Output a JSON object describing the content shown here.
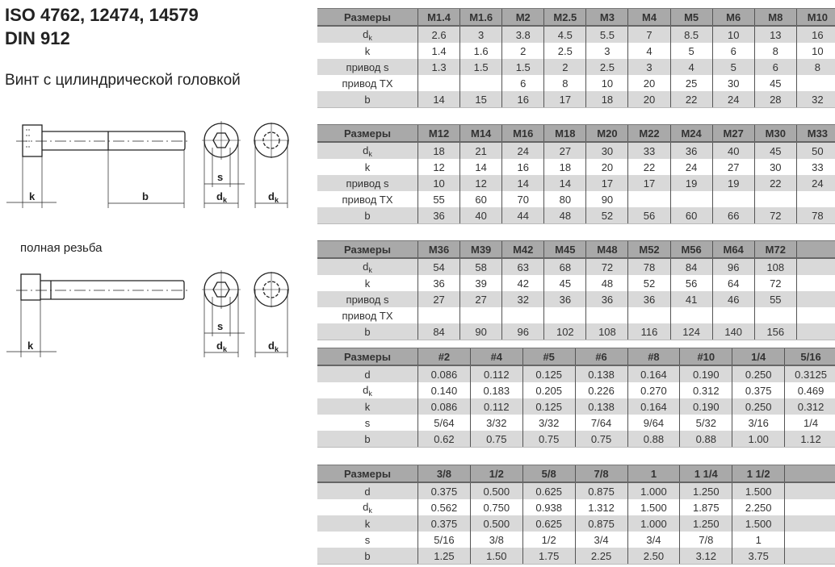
{
  "title_lines": [
    "ISO 4762, 12474, 14579",
    "DIN 912"
  ],
  "subtitle": "Винт с цилиндрической головкой",
  "full_thread_label": "полная резьба",
  "drawing_labels": {
    "k": "k",
    "b": "b",
    "s": "s",
    "dk_base": "d",
    "dk_sub": "k"
  },
  "tables": [
    {
      "header": "Размеры",
      "columns": [
        "M1.4",
        "M1.6",
        "M2",
        "M2.5",
        "M3",
        "M4",
        "M5",
        "M6",
        "M8",
        "M10"
      ],
      "rows": [
        {
          "label": "d",
          "sub": "k",
          "values": [
            "2.6",
            "3",
            "3.8",
            "4.5",
            "5.5",
            "7",
            "8.5",
            "10",
            "13",
            "16"
          ]
        },
        {
          "label": "k",
          "values": [
            "1.4",
            "1.6",
            "2",
            "2.5",
            "3",
            "4",
            "5",
            "6",
            "8",
            "10"
          ]
        },
        {
          "label": "привод s",
          "values": [
            "1.3",
            "1.5",
            "1.5",
            "2",
            "2.5",
            "3",
            "4",
            "5",
            "6",
            "8"
          ]
        },
        {
          "label": "привод TX",
          "values": [
            "",
            "",
            "6",
            "8",
            "10",
            "20",
            "25",
            "30",
            "45",
            ""
          ]
        },
        {
          "label": "b",
          "values": [
            "14",
            "15",
            "16",
            "17",
            "18",
            "20",
            "22",
            "24",
            "28",
            "32"
          ]
        }
      ]
    },
    {
      "header": "Размеры",
      "columns": [
        "M12",
        "M14",
        "M16",
        "M18",
        "M20",
        "M22",
        "M24",
        "M27",
        "M30",
        "M33"
      ],
      "rows": [
        {
          "label": "d",
          "sub": "k",
          "values": [
            "18",
            "21",
            "24",
            "27",
            "30",
            "33",
            "36",
            "40",
            "45",
            "50"
          ]
        },
        {
          "label": "k",
          "values": [
            "12",
            "14",
            "16",
            "18",
            "20",
            "22",
            "24",
            "27",
            "30",
            "33"
          ]
        },
        {
          "label": "привод s",
          "values": [
            "10",
            "12",
            "14",
            "14",
            "17",
            "17",
            "19",
            "19",
            "22",
            "24"
          ]
        },
        {
          "label": "привод TX",
          "values": [
            "55",
            "60",
            "70",
            "80",
            "90",
            "",
            "",
            "",
            "",
            ""
          ]
        },
        {
          "label": "b",
          "values": [
            "36",
            "40",
            "44",
            "48",
            "52",
            "56",
            "60",
            "66",
            "72",
            "78"
          ]
        }
      ]
    },
    {
      "header": "Размеры",
      "columns": [
        "M36",
        "M39",
        "M42",
        "M45",
        "M48",
        "M52",
        "M56",
        "M64",
        "M72",
        ""
      ],
      "rows": [
        {
          "label": "d",
          "sub": "k",
          "values": [
            "54",
            "58",
            "63",
            "68",
            "72",
            "78",
            "84",
            "96",
            "108",
            ""
          ]
        },
        {
          "label": "k",
          "values": [
            "36",
            "39",
            "42",
            "45",
            "48",
            "52",
            "56",
            "64",
            "72",
            ""
          ]
        },
        {
          "label": "привод s",
          "values": [
            "27",
            "27",
            "32",
            "36",
            "36",
            "36",
            "41",
            "46",
            "55",
            ""
          ]
        },
        {
          "label": "привод TX",
          "values": [
            "",
            "",
            "",
            "",
            "",
            "",
            "",
            "",
            "",
            ""
          ]
        },
        {
          "label": "b",
          "values": [
            "84",
            "90",
            "96",
            "102",
            "108",
            "116",
            "124",
            "140",
            "156",
            ""
          ]
        }
      ]
    },
    {
      "header": "Размеры",
      "columns": [
        "#2",
        "#4",
        "#5",
        "#6",
        "#8",
        "#10",
        "1/4",
        "5/16"
      ],
      "rows": [
        {
          "label": "d",
          "values": [
            "0.086",
            "0.112",
            "0.125",
            "0.138",
            "0.164",
            "0.190",
            "0.250",
            "0.3125"
          ]
        },
        {
          "label": "d",
          "sub": "k",
          "values": [
            "0.140",
            "0.183",
            "0.205",
            "0.226",
            "0.270",
            "0.312",
            "0.375",
            "0.469"
          ]
        },
        {
          "label": "k",
          "values": [
            "0.086",
            "0.112",
            "0.125",
            "0.138",
            "0.164",
            "0.190",
            "0.250",
            "0.312"
          ]
        },
        {
          "label": "s",
          "values": [
            "5/64",
            "3/32",
            "3/32",
            "7/64",
            "9/64",
            "5/32",
            "3/16",
            "1/4"
          ]
        },
        {
          "label": "b",
          "values": [
            "0.62",
            "0.75",
            "0.75",
            "0.75",
            "0.88",
            "0.88",
            "1.00",
            "1.12"
          ]
        }
      ]
    },
    {
      "header": "Размеры",
      "columns": [
        "3/8",
        "1/2",
        "5/8",
        "7/8",
        "1",
        "1 1/4",
        "1 1/2",
        ""
      ],
      "rows": [
        {
          "label": "d",
          "values": [
            "0.375",
            "0.500",
            "0.625",
            "0.875",
            "1.000",
            "1.250",
            "1.500",
            ""
          ]
        },
        {
          "label": "d",
          "sub": "k",
          "values": [
            "0.562",
            "0.750",
            "0.938",
            "1.312",
            "1.500",
            "1.875",
            "2.250",
            ""
          ]
        },
        {
          "label": "k",
          "values": [
            "0.375",
            "0.500",
            "0.625",
            "0.875",
            "1.000",
            "1.250",
            "1.500",
            ""
          ]
        },
        {
          "label": "s",
          "values": [
            "5/16",
            "3/8",
            "1/2",
            "3/4",
            "3/4",
            "7/8",
            "1",
            ""
          ]
        },
        {
          "label": "b",
          "values": [
            "1.25",
            "1.50",
            "1.75",
            "2.25",
            "2.50",
            "3.12",
            "3.75",
            ""
          ]
        }
      ]
    }
  ]
}
